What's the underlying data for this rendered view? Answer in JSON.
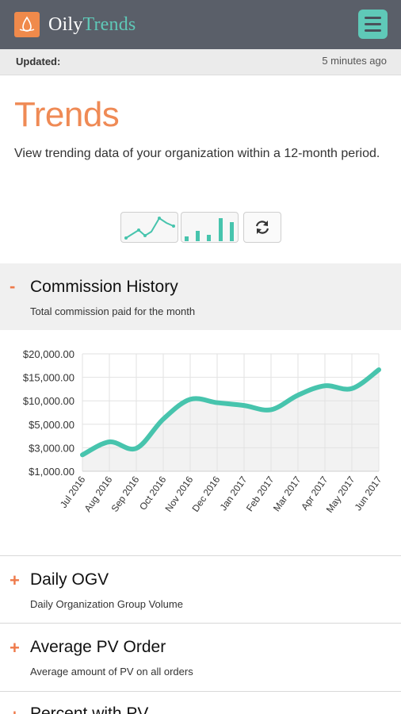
{
  "header": {
    "brand_part1": "Oily",
    "brand_part2": "Trends"
  },
  "status": {
    "updated_label": "Updated:",
    "updated_value": "5 minutes ago"
  },
  "page": {
    "title": "Trends",
    "description": "View trending data of your organization within a 12-month period."
  },
  "chart_toggles": [
    "line-chart-icon",
    "bar-chart-icon",
    "refresh-icon"
  ],
  "sections": [
    {
      "sign": "-",
      "title": "Commission History",
      "subtitle": "Total commission paid for the month",
      "expanded": true
    },
    {
      "sign": "+",
      "title": "Daily OGV",
      "subtitle": "Daily Organization Group Volume",
      "expanded": false
    },
    {
      "sign": "+",
      "title": "Average PV Order",
      "subtitle": "Average amount of PV on all orders",
      "expanded": false
    },
    {
      "sign": "+",
      "title": "Percent with PV",
      "subtitle": "",
      "expanded": false
    }
  ],
  "colors": {
    "accent": "#ef8a55",
    "teal": "#47c4ad",
    "topbar": "#5a5f69"
  },
  "chart_data": {
    "type": "area",
    "x": [
      "Jul 2016",
      "Aug 2016",
      "Sep 2016",
      "Oct 2016",
      "Nov 2016",
      "Dec 2016",
      "Jan 2017",
      "Feb 2017",
      "Mar 2017",
      "Apr 2017",
      "May 2017",
      "Jun 2017"
    ],
    "values": [
      2400,
      3500,
      2950,
      6100,
      10300,
      9600,
      9000,
      8100,
      11200,
      13200,
      12600,
      16600
    ],
    "y_ticks": [
      "$20,000.00",
      "$15,000.00",
      "$10,000.00",
      "$5,000.00",
      "$3,000.00",
      "$1,000.00"
    ],
    "y_tick_values": [
      20000,
      15000,
      10000,
      5000,
      3000,
      1000
    ],
    "grid": true,
    "legend": "none"
  }
}
